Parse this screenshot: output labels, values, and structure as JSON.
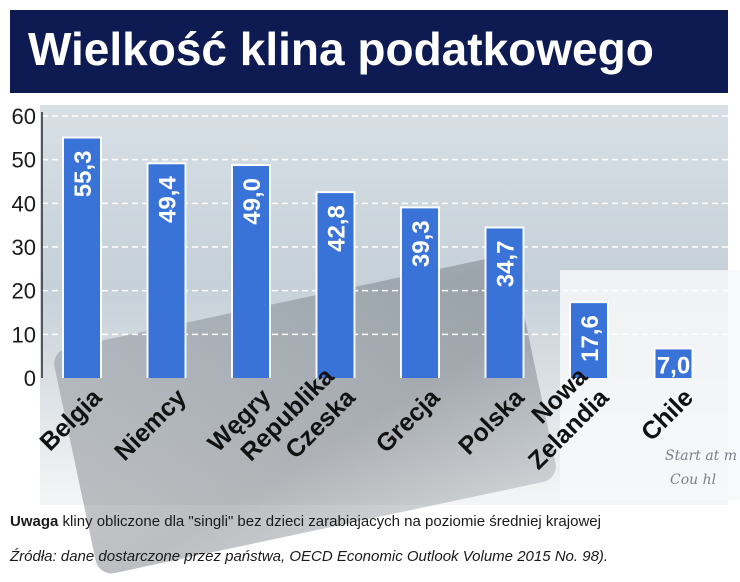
{
  "title": "Wielkość klina podatkowego",
  "note_label": "Uwaga",
  "note_text": "kliny obliczone dla \"singli\" bez dzieci zarabiajacych na poziomie średniej krajowej",
  "source": "Źródła: dane dostarczone przez państwa, OECD Economic Outlook Volume 2015 No. 98).",
  "background_text": [
    "Start at m",
    "Cou hl"
  ],
  "colors": {
    "title_bg": "#0d1b52",
    "bar": "#3a73d8",
    "bar_label": "#ffffff",
    "grid": "#ffffff",
    "text": "#1a1a1a"
  },
  "chart_data": {
    "type": "bar",
    "title": "Wielkość klina podatkowego",
    "xlabel": "",
    "ylabel": "",
    "ylim": [
      0,
      60
    ],
    "yticks": [
      0,
      10,
      20,
      30,
      40,
      50,
      60
    ],
    "grid": true,
    "categories": [
      "Belgia",
      "Niemcy",
      "Węgry",
      "Republika Czeska",
      "Grecja",
      "Polska",
      "Nowa Zelandia",
      "Chile"
    ],
    "category_lines": [
      [
        "Belgia"
      ],
      [
        "Niemcy"
      ],
      [
        "Węgry"
      ],
      [
        "Republika",
        "Czeska"
      ],
      [
        "Grecja"
      ],
      [
        "Polska"
      ],
      [
        "Nowa",
        "Zelandia"
      ],
      [
        "Chile"
      ]
    ],
    "values": [
      55.3,
      49.4,
      49.0,
      42.8,
      39.3,
      34.7,
      17.6,
      7.0
    ],
    "value_labels": [
      "55,3",
      "49,4",
      "49,0",
      "42,8",
      "39,3",
      "34,7",
      "17,6",
      "7,0"
    ]
  }
}
